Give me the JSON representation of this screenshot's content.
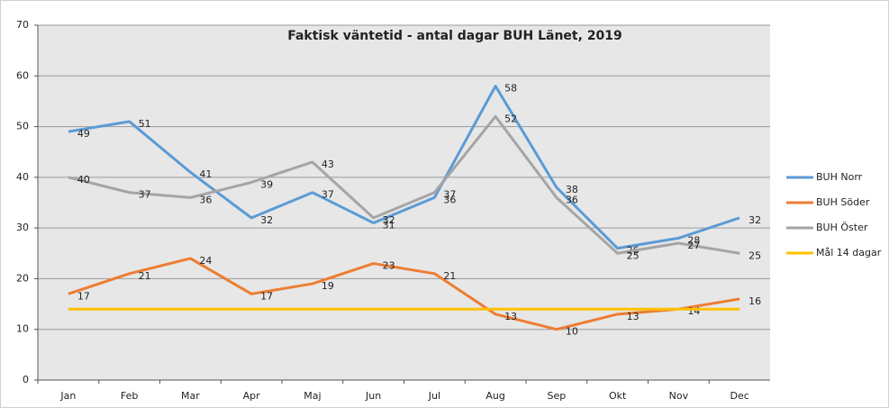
{
  "chart_data": {
    "type": "line",
    "title": "Faktisk väntetid - antal dagar BUH Länet, 2019",
    "categories": [
      "Jan",
      "Feb",
      "Mar",
      "Apr",
      "Maj",
      "Jun",
      "Jul",
      "Aug",
      "Sep",
      "Okt",
      "Nov",
      "Dec"
    ],
    "series": [
      {
        "name": "BUH Norr",
        "color": "#5b9bd5",
        "show_labels": true,
        "values": [
          49,
          51,
          41,
          32,
          37,
          31,
          36,
          58,
          38,
          26,
          28,
          32
        ]
      },
      {
        "name": "BUH Söder",
        "color": "#ed7d31",
        "show_labels": true,
        "values": [
          17,
          21,
          24,
          17,
          19,
          23,
          21,
          13,
          10,
          13,
          14,
          16
        ]
      },
      {
        "name": "BUH Öster",
        "color": "#a5a5a5",
        "show_labels": true,
        "values": [
          40,
          37,
          36,
          39,
          43,
          32,
          37,
          52,
          36,
          25,
          27,
          25
        ]
      },
      {
        "name": "Mål 14 dagar",
        "color": "#ffc000",
        "show_labels": false,
        "values": [
          14,
          14,
          14,
          14,
          14,
          14,
          14,
          14,
          14,
          14,
          14,
          14
        ]
      }
    ],
    "ylim": [
      0,
      70
    ],
    "yticks": [
      0,
      10,
      20,
      30,
      40,
      50,
      60,
      70
    ],
    "grid": true,
    "legend": "right"
  }
}
